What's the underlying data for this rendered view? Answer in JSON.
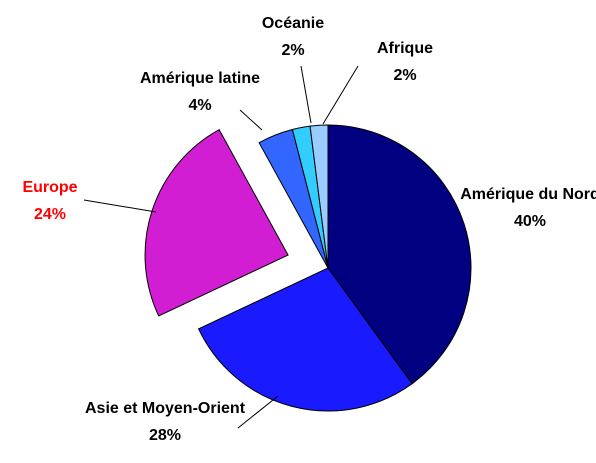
{
  "chart_data": {
    "type": "pie",
    "categories": [
      "Amérique du Nord",
      "Asie et Moyen-Orient",
      "Europe",
      "Amérique latine",
      "Océanie",
      "Afrique"
    ],
    "values": [
      40,
      28,
      24,
      4,
      2,
      2
    ],
    "value_labels": [
      "40%",
      "28%",
      "24%",
      "4%",
      "2%",
      "2%"
    ],
    "colors": [
      "#000080",
      "#1a1aff",
      "#d21ed2",
      "#3366ff",
      "#33ccff",
      "#99ccff"
    ],
    "exploded": [
      false,
      false,
      true,
      false,
      false,
      false
    ],
    "label_colors": [
      "#000000",
      "#000000",
      "#ff0000",
      "#000000",
      "#000000",
      "#000000"
    ]
  }
}
